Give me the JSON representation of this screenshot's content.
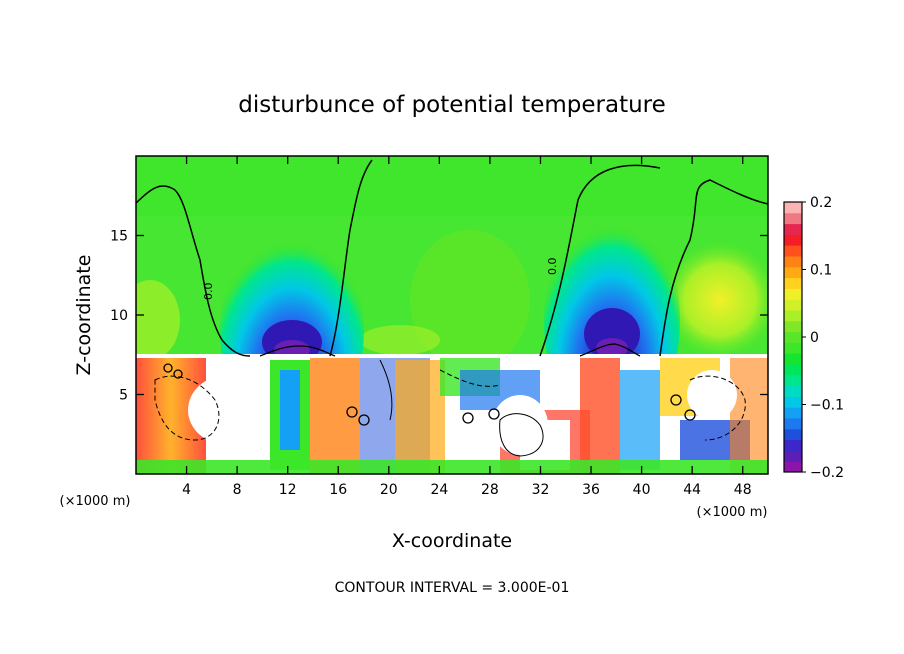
{
  "chart_data": {
    "type": "heatmap",
    "title": "disturbunce of potential temperature",
    "xlabel": "X-coordinate",
    "ylabel": "Z-coordinate",
    "x_unit": "(×1000 m)",
    "x_unit_right": "(×1000 m)",
    "xlim": [
      0,
      50
    ],
    "ylim": [
      0,
      20
    ],
    "xticks": [
      4,
      8,
      12,
      16,
      20,
      24,
      28,
      32,
      36,
      40,
      44,
      48
    ],
    "yticks": [
      5,
      10,
      15
    ],
    "colorbar": {
      "range": [
        -0.2,
        0.2
      ],
      "ticks": [
        "0.2",
        "0.1",
        "0",
        "−0.1",
        "−0.2"
      ],
      "tick_values": [
        0.2,
        0.1,
        0,
        -0.1,
        -0.2
      ],
      "levels": 24,
      "colors": [
        "#8c14a8",
        "#5a1fb4",
        "#3c28c8",
        "#1e50dc",
        "#1e78f0",
        "#14a0f5",
        "#00c8e6",
        "#00dcc3",
        "#00e68c",
        "#00e65a",
        "#14e62d",
        "#3ce628",
        "#5ae628",
        "#82e628",
        "#aaf028",
        "#d2f028",
        "#f0f028",
        "#ffd21e",
        "#ffaa14",
        "#ff8214",
        "#ff501e",
        "#f51e28",
        "#e62850",
        "#f07882",
        "#fab4b4"
      ]
    },
    "contour_interval": "CONTOUR INTERVAL = 3.000E-01",
    "contour_labels": [
      "0.0",
      "0.0"
    ]
  }
}
